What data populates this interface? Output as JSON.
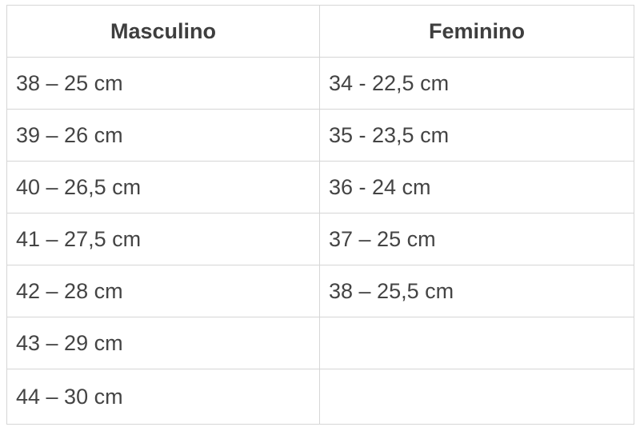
{
  "table": {
    "headers": [
      "Masculino",
      "Feminino"
    ],
    "rows": [
      [
        "38 – 25 cm",
        "34 - 22,5 cm"
      ],
      [
        "39 – 26 cm",
        "35 - 23,5 cm"
      ],
      [
        "40 – 26,5 cm",
        "36 - 24 cm"
      ],
      [
        "41 – 27,5 cm",
        "37 – 25 cm"
      ],
      [
        "42 – 28 cm",
        "38 – 25,5 cm"
      ],
      [
        "43 – 29 cm",
        ""
      ],
      [
        "44 – 30 cm",
        ""
      ]
    ]
  }
}
